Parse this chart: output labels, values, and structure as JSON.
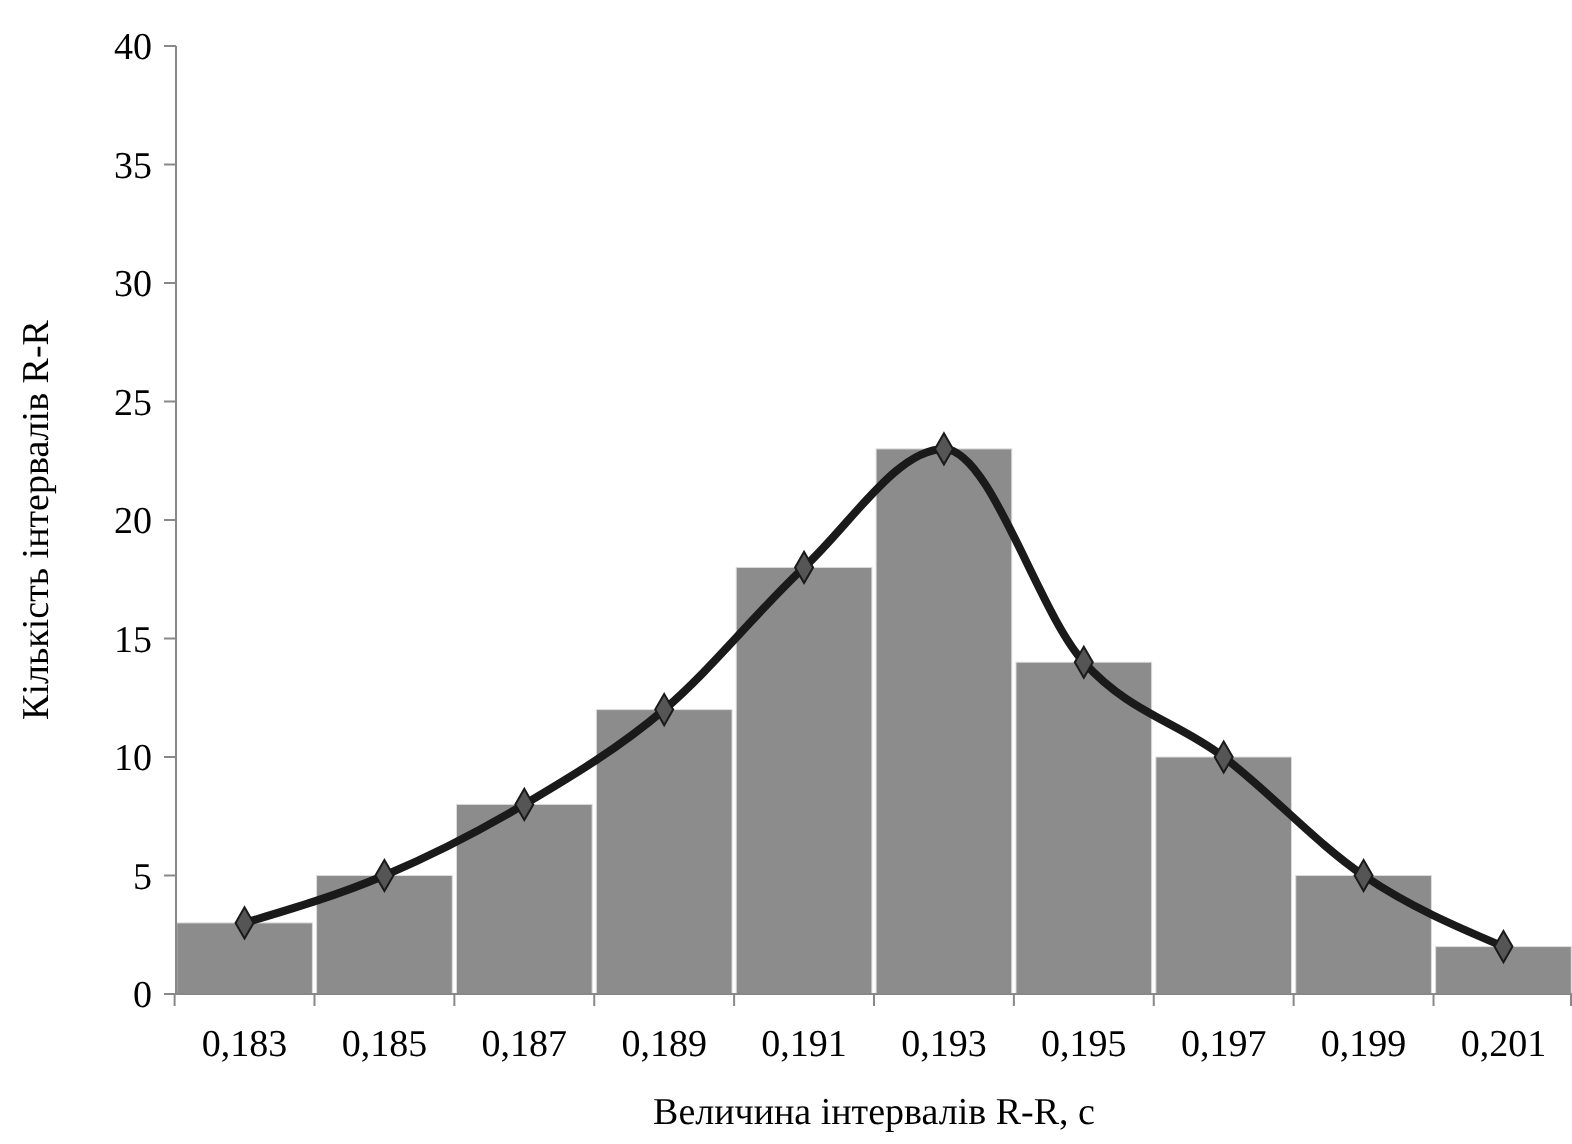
{
  "chart_data": {
    "type": "bar",
    "xlabel": "Величина інтервалів R-R, с",
    "ylabel": "Кількість інтервалів R-R",
    "categories": [
      "0,183",
      "0,185",
      "0,187",
      "0,189",
      "0,191",
      "0,193",
      "0,195",
      "0,197",
      "0,199",
      "0,201"
    ],
    "series": [
      {
        "color": "#8c8c8c",
        "values": [
          3,
          5,
          8,
          12,
          18,
          23,
          14,
          10,
          5,
          2
        ]
      },
      {
        "type": "line",
        "color": "#1a1a1a",
        "marker": "diamond",
        "values": [
          3,
          5,
          8,
          12,
          18,
          23,
          14,
          10,
          5,
          2
        ]
      }
    ],
    "ylim": [
      0,
      40
    ],
    "yticks": [
      0,
      5,
      10,
      15,
      20,
      25,
      30,
      35,
      40
    ],
    "grid": false
  }
}
